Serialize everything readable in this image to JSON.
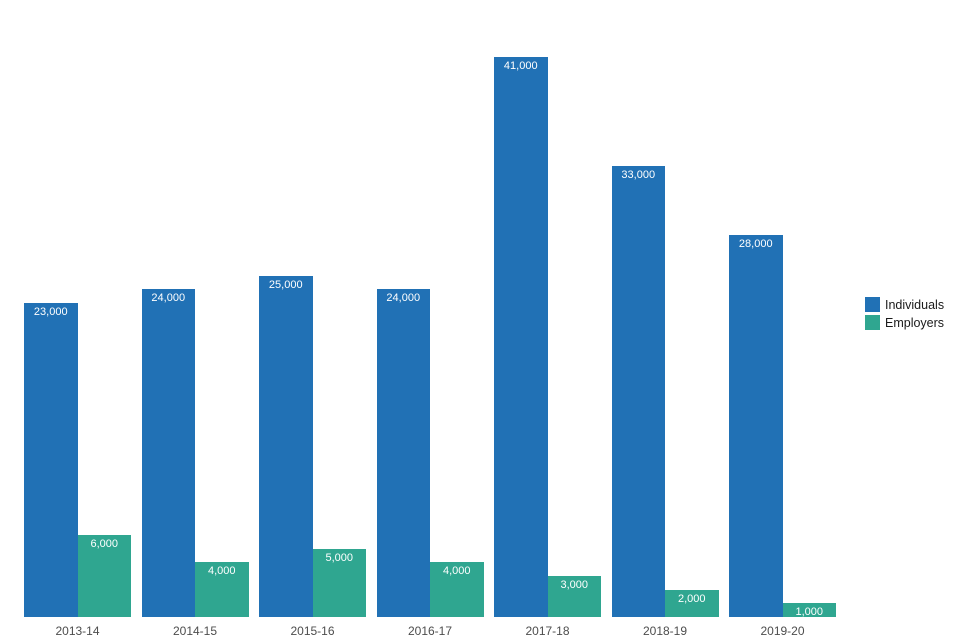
{
  "chart_data": {
    "type": "bar",
    "title": "",
    "xlabel": "",
    "ylabel": "",
    "grid": false,
    "legend_position": "right",
    "ylim": [
      0,
      41000
    ],
    "categories": [
      "2013-14",
      "2014-15",
      "2015-16",
      "2016-17",
      "2017-18",
      "2018-19",
      "2019-20"
    ],
    "series": [
      {
        "name": "Individuals",
        "color": "#2171b5",
        "values": [
          23000,
          24000,
          25000,
          24000,
          41000,
          33000,
          28000
        ],
        "labels": [
          "23,000",
          "24,000",
          "25,000",
          "24,000",
          "41,000",
          "33,000",
          "28,000"
        ]
      },
      {
        "name": "Employers",
        "color": "#2fa690",
        "values": [
          6000,
          4000,
          5000,
          4000,
          3000,
          2000,
          1000
        ],
        "labels": [
          "6,000",
          "4,000",
          "5,000",
          "4,000",
          "3,000",
          "2,000",
          "1,000"
        ]
      }
    ]
  }
}
